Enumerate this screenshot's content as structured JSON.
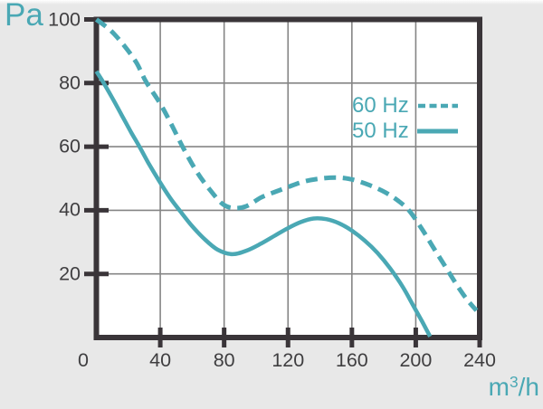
{
  "page": {
    "background": "#e8e8e8"
  },
  "chart_data": {
    "type": "line",
    "title": "",
    "ylabel": "Pa",
    "xlabel_unit": {
      "prefix": "m",
      "sup": "3",
      "suffix": "/h"
    },
    "xlim": [
      0,
      240
    ],
    "ylim": [
      0,
      100
    ],
    "x_ticks": [
      0,
      40,
      80,
      120,
      160,
      200,
      240
    ],
    "y_ticks": [
      20,
      40,
      60,
      80,
      100
    ],
    "grid": true,
    "legend_position": "inside-top-right",
    "colors": {
      "curve": "#4aa8b4",
      "axis": "#3a3539",
      "grid": "#858585",
      "plot_bg": "#ffffff",
      "tick_text": "#3f3e40",
      "unit_text": "#4aa8b4"
    },
    "series": [
      {
        "name": "60 Hz",
        "style": "dashed",
        "points": [
          [
            0,
            100
          ],
          [
            9,
            96.5
          ],
          [
            17,
            92
          ],
          [
            25,
            86.5
          ],
          [
            31,
            80.5
          ],
          [
            40,
            73.5
          ],
          [
            47,
            67
          ],
          [
            55,
            59
          ],
          [
            63,
            52
          ],
          [
            71,
            46.5
          ],
          [
            79,
            42
          ],
          [
            86,
            40.7
          ],
          [
            94,
            41.3
          ],
          [
            103,
            44
          ],
          [
            112,
            45.8
          ],
          [
            120,
            47.3
          ],
          [
            129,
            48.9
          ],
          [
            139,
            49.9
          ],
          [
            150,
            50.3
          ],
          [
            160,
            49.7
          ],
          [
            171,
            47.9
          ],
          [
            181,
            45.6
          ],
          [
            189,
            43
          ],
          [
            196,
            39.8
          ],
          [
            204,
            34
          ],
          [
            211,
            28.3
          ],
          [
            218,
            22.7
          ],
          [
            226,
            16.3
          ],
          [
            232,
            12
          ],
          [
            238,
            8.5
          ]
        ]
      },
      {
        "name": "50 Hz",
        "style": "solid",
        "points": [
          [
            0,
            83.7
          ],
          [
            4,
            80.5
          ],
          [
            10,
            75.3
          ],
          [
            16,
            69.8
          ],
          [
            22,
            64.3
          ],
          [
            27,
            60
          ],
          [
            33,
            54.5
          ],
          [
            39,
            49.5
          ],
          [
            46,
            44
          ],
          [
            53,
            39.4
          ],
          [
            60,
            35
          ],
          [
            68,
            30.8
          ],
          [
            76,
            27.6
          ],
          [
            85,
            26.2
          ],
          [
            94,
            27.3
          ],
          [
            103,
            29.5
          ],
          [
            112,
            32.1
          ],
          [
            120,
            34.4
          ],
          [
            128,
            36.3
          ],
          [
            136,
            37.4
          ],
          [
            144,
            37.2
          ],
          [
            152,
            35.9
          ],
          [
            160,
            33.6
          ],
          [
            168,
            30.5
          ],
          [
            176,
            26.6
          ],
          [
            184,
            21.7
          ],
          [
            192,
            15.8
          ],
          [
            199,
            9.5
          ],
          [
            204,
            5
          ],
          [
            209,
            0.3
          ]
        ]
      }
    ]
  }
}
